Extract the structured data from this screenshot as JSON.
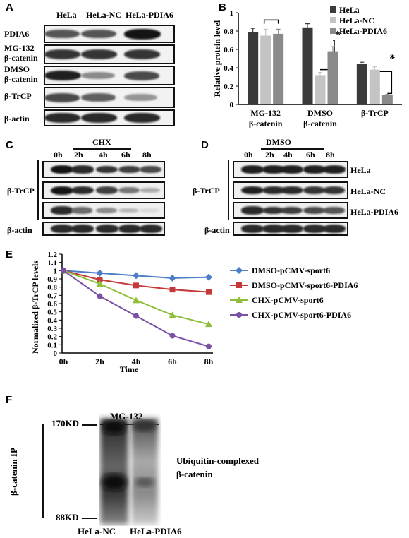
{
  "panels": {
    "a": "A",
    "b": "B",
    "c": "C",
    "d": "D",
    "e": "E",
    "f": "F"
  },
  "panel_a": {
    "columns": [
      "HeLa",
      "HeLa-NC",
      "HeLa-PDIA6"
    ],
    "rows": [
      {
        "label": "PDIA6",
        "intensity": [
          0.7,
          0.7,
          1.0
        ]
      },
      {
        "label": "MG-132\nβ-catenin",
        "intensity": [
          0.85,
          0.85,
          0.85
        ]
      },
      {
        "label": "DMSO\nβ-catenin",
        "intensity": [
          0.95,
          0.45,
          0.75
        ]
      },
      {
        "label": "β-TrCP",
        "intensity": [
          0.75,
          0.65,
          0.4
        ]
      },
      {
        "label": "β-actin",
        "intensity": [
          0.9,
          0.9,
          0.9
        ]
      }
    ]
  },
  "chart_data": [
    {
      "type": "bar",
      "ylabel": "Relative protein level",
      "ylim": [
        0,
        1
      ],
      "yticks": [
        "0",
        "0.2",
        "0.4",
        "0.6",
        "0.8",
        "1"
      ],
      "categories": [
        "MG-132\nβ-catenin",
        "DMSO\nβ-catenin",
        "β-TrCP"
      ],
      "series": [
        {
          "name": "HeLa",
          "color": "#3a3a3a",
          "values": [
            0.79,
            0.84,
            0.44
          ],
          "errors": [
            0.04,
            0.04,
            0.02
          ]
        },
        {
          "name": "HeLa-NC",
          "color": "#c4c4c4",
          "values": [
            0.75,
            0.32,
            0.38
          ],
          "errors": [
            0.07,
            0.03,
            0.03
          ]
        },
        {
          "name": "HeLa-PDIA6",
          "color": "#8a8a8a",
          "values": [
            0.77,
            0.58,
            0.1
          ],
          "errors": [
            0.05,
            0.05,
            0.01
          ]
        }
      ],
      "significance": "*",
      "legend": "top-right"
    },
    {
      "type": "line",
      "ylabel": "Normalized β-TrCP levels",
      "xlabel": "Time",
      "x": [
        "0h",
        "2h",
        "4h",
        "6h",
        "8h"
      ],
      "ylim": [
        0,
        1.2
      ],
      "yticks": [
        "0",
        "0.1",
        "0.2",
        "0.3",
        "0.4",
        "0.5",
        "0.6",
        "0.7",
        "0.8",
        "0.9",
        "1",
        "1.1",
        "1.2"
      ],
      "series": [
        {
          "name": "DMSO-pCMV-sport6",
          "color": "#4a7cc9",
          "marker": "diamond",
          "values": [
            1.0,
            0.97,
            0.94,
            0.91,
            0.92
          ],
          "errors": [
            0,
            0.01,
            0.01,
            0.01,
            0.01
          ]
        },
        {
          "name": "DMSO-pCMV-sport6-PDIA6",
          "color": "#c43a3a",
          "marker": "square",
          "values": [
            1.0,
            0.89,
            0.82,
            0.77,
            0.74
          ],
          "errors": [
            0,
            0.02,
            0.02,
            0.03,
            0.03
          ]
        },
        {
          "name": "CHX-pCMV-sport6",
          "color": "#8fbf3a",
          "marker": "triangle",
          "values": [
            1.0,
            0.84,
            0.64,
            0.46,
            0.35
          ],
          "errors": [
            0,
            0.01,
            0.02,
            0.02,
            0.01
          ]
        },
        {
          "name": "CHX-pCMV-sport6-PDIA6",
          "color": "#7a4fa6",
          "marker": "circle",
          "values": [
            1.0,
            0.69,
            0.45,
            0.21,
            0.08
          ],
          "errors": [
            0,
            0.01,
            0.01,
            0.01,
            0.01
          ]
        }
      ],
      "legend": "right"
    }
  ],
  "panel_c": {
    "treatment": "CHX",
    "times": [
      "0h",
      "2h",
      "4h",
      "6h",
      "8h"
    ],
    "group_label": "β-TrCP",
    "actin_label": "β-actin",
    "rows": [
      [
        1,
        0.9,
        0.85,
        0.8,
        0.75
      ],
      [
        1,
        0.9,
        0.8,
        0.55,
        0.3
      ],
      [
        0.9,
        0.6,
        0.45,
        0.25,
        0.08
      ],
      [
        0.9,
        0.9,
        0.9,
        0.9,
        0.9
      ]
    ]
  },
  "panel_d": {
    "treatment": "DMSO",
    "times": [
      "0h",
      "2h",
      "4h",
      "6h",
      "8h"
    ],
    "group_label": "β-TrCP",
    "actin_label": "β-actin",
    "row_labels": [
      "HeLa",
      "HeLa-NC",
      "HeLa-PDIA6"
    ],
    "rows": [
      [
        0.95,
        0.95,
        0.95,
        0.95,
        0.95
      ],
      [
        0.95,
        0.9,
        0.9,
        0.85,
        0.85
      ],
      [
        0.9,
        0.85,
        0.8,
        0.75,
        0.7
      ],
      [
        0.9,
        0.9,
        0.9,
        0.9,
        0.9
      ]
    ]
  },
  "panel_f": {
    "treatment": "MG-132",
    "ylabel": "β-catenin IP",
    "marker_top": "170KD",
    "marker_bottom": "88KD",
    "annotation": "Ubiquitin-complexed\nβ-catenin",
    "lanes": [
      "HeLa-NC",
      "HeLa-PDIA6"
    ]
  }
}
